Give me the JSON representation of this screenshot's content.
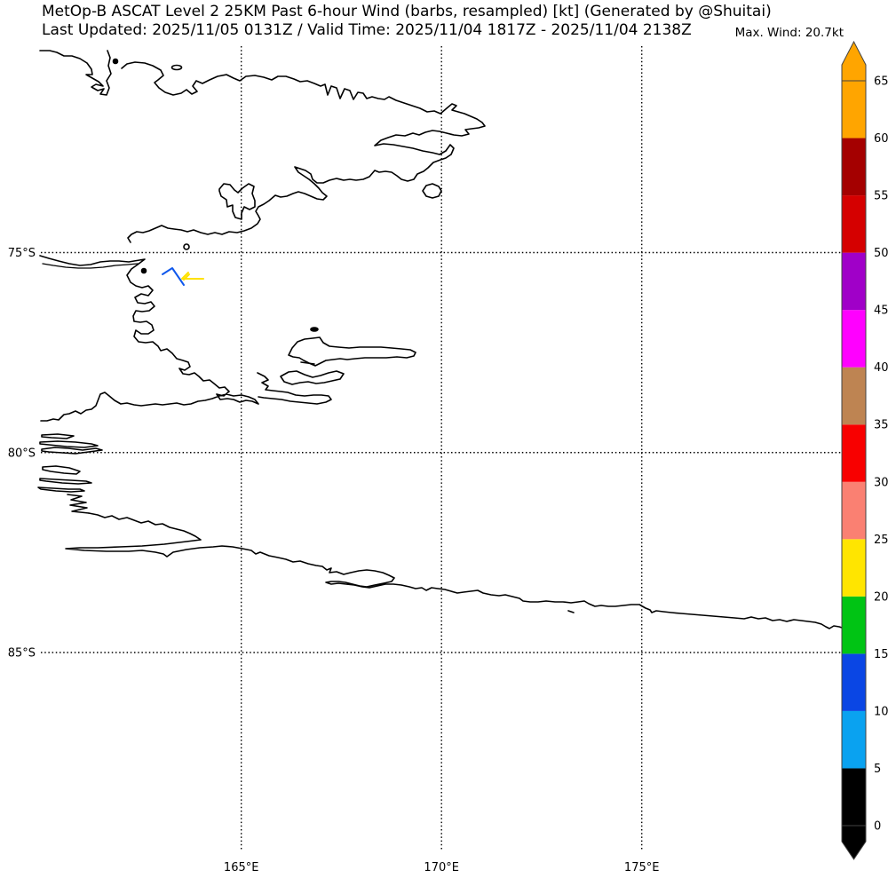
{
  "header": {
    "title_line1": "MetOp-B ASCAT Level 2 25KM Past 6-hour Wind (barbs, resampled) [kt] (Generated by @Shuitai)",
    "title_line2": "Last Updated: 2025/11/05 0131Z / Valid Time: 2025/11/04 1817Z - 2025/11/04 2138Z",
    "max_wind_label": "Max. Wind: 20.7kt"
  },
  "axes": {
    "lat_ticks": [
      {
        "value": 75,
        "label": "75°S"
      },
      {
        "value": 80,
        "label": "80°S"
      },
      {
        "value": 85,
        "label": "85°S"
      }
    ],
    "lon_ticks": [
      {
        "value": 165,
        "label": "165°E"
      },
      {
        "value": 170,
        "label": "170°E"
      },
      {
        "value": 175,
        "label": "175°E"
      }
    ]
  },
  "colorbar": {
    "min": 0,
    "max": 65,
    "ticks": [
      0,
      5,
      10,
      15,
      20,
      25,
      30,
      35,
      40,
      45,
      50,
      55,
      60,
      65
    ],
    "segments": [
      {
        "from": 0,
        "to": 5,
        "color": "#000000"
      },
      {
        "from": 5,
        "to": 10,
        "color": "#0AA2F0"
      },
      {
        "from": 10,
        "to": 15,
        "color": "#0A46E4"
      },
      {
        "from": 15,
        "to": 20,
        "color": "#00C414"
      },
      {
        "from": 20,
        "to": 25,
        "color": "#FFE500"
      },
      {
        "from": 25,
        "to": 30,
        "color": "#FA8072"
      },
      {
        "from": 30,
        "to": 35,
        "color": "#F80000"
      },
      {
        "from": 35,
        "to": 40,
        "color": "#BE8452"
      },
      {
        "from": 40,
        "to": 45,
        "color": "#FF00FF"
      },
      {
        "from": 45,
        "to": 50,
        "color": "#A000C8"
      },
      {
        "from": 50,
        "to": 55,
        "color": "#D50000"
      },
      {
        "from": 55,
        "to": 60,
        "color": "#A40000"
      },
      {
        "from": 60,
        "to": 65,
        "color": "#FFA500"
      }
    ],
    "over_arrow_color": "#FFA500",
    "under_arrow_color": "#000000"
  },
  "wind_barbs": [
    {
      "color": "#1058EC",
      "speed_band_kt": "10-15",
      "strokes": [
        "183,309 194,302 207,321"
      ]
    },
    {
      "color": "#FFE100",
      "speed_band_kt": "20-25",
      "strokes": [
        "229,314 205,314 212,307",
        "207,315 213,309"
      ]
    }
  ],
  "chart_data": {
    "type": "map",
    "subtype": "wind_barbs",
    "title": "MetOp-B ASCAT Level 2 25KM Past 6-hour Wind (barbs, resampled) [kt]",
    "x_axis": {
      "unit": "°E",
      "ticks": [
        165,
        170,
        175
      ]
    },
    "y_axis": {
      "unit": "°S",
      "ticks": [
        75,
        80,
        85
      ]
    },
    "color_scale": {
      "unit": "kt",
      "min": 0,
      "max": 65,
      "step": 5
    },
    "max_wind_kt": 20.7,
    "grid": "dotted",
    "legend_position": "right-colorbar",
    "data_points": [
      {
        "approx_lon_e": 163.3,
        "approx_lat_s": 75.6,
        "speed_band_kt": "10-15"
      },
      {
        "approx_lon_e": 163.8,
        "approx_lat_s": 75.6,
        "speed_band_kt": "20-25",
        "note": "max wind 20.7 kt"
      }
    ]
  }
}
